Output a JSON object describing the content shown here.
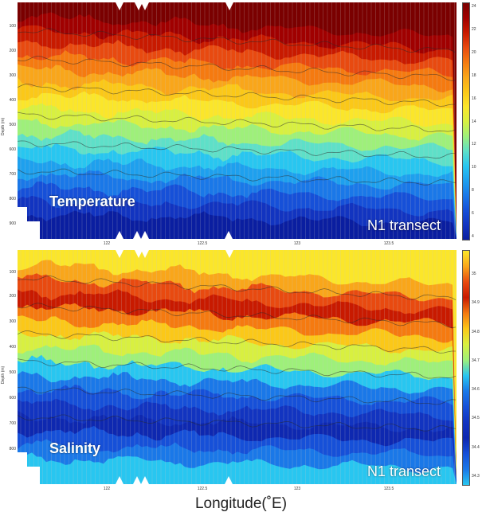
{
  "xaxis_label": "Longitude(˚E)",
  "panels": [
    {
      "title": "Temperature",
      "transect": "N1 transect",
      "ylabel": "Depth (m)",
      "yticks": [
        "100",
        "200",
        "300",
        "400",
        "500",
        "600",
        "700",
        "800",
        "900"
      ],
      "xticks": [
        "122",
        "122.5",
        "123",
        "123.5"
      ],
      "colorbar_ticks": [
        "24",
        "22",
        "20",
        "18",
        "16",
        "14",
        "12",
        "10",
        "8",
        "6",
        "4"
      ],
      "contour_labels": [
        "26",
        "25",
        "20",
        "18",
        "16",
        "14",
        "12",
        "10",
        "8",
        "6"
      ],
      "colors": [
        "#7a0000",
        "#a00000",
        "#c81a00",
        "#e84a10",
        "#f57a10",
        "#f9a61a",
        "#fbc818",
        "#fbe62a",
        "#d8f040",
        "#9ef07a",
        "#5ee0c8",
        "#28c6f0",
        "#1ea0ee",
        "#1a78e8",
        "#1650d8",
        "#1234c0",
        "#0a1ea0"
      ]
    },
    {
      "title": "Salinity",
      "transect": "N1 transect",
      "ylabel": "Depth (m)",
      "yticks": [
        "100",
        "200",
        "300",
        "400",
        "500",
        "600",
        "700",
        "800"
      ],
      "xticks": [
        "122",
        "122.5",
        "123",
        "123.5"
      ],
      "colorbar_ticks": [
        "35",
        "34.9",
        "34.8",
        "34.7",
        "34.6",
        "34.5",
        "34.4",
        "34.3"
      ],
      "contour_labels": [
        "34.8",
        "34.7",
        "34.6",
        "34.5",
        "34.4"
      ],
      "colors": [
        "#fbe62a",
        "#f9a61a",
        "#e84a10",
        "#c81a00",
        "#f57a10",
        "#fbc818",
        "#d8f040",
        "#9ef07a",
        "#28c6f0",
        "#1a78e8",
        "#1650d8",
        "#1234c0",
        "#0e28b0",
        "#1650d8",
        "#1a78e8",
        "#28c6f0"
      ]
    }
  ],
  "chart_data": [
    {
      "type": "heatmap",
      "title": "Temperature",
      "ylabel": "Depth (m)",
      "xlabel": "Longitude(˚E)",
      "x_range": [
        121.6,
        123.9
      ],
      "y_range": [
        0,
        980
      ],
      "y_reversed": true,
      "colorbar": {
        "min": 4,
        "max": 25,
        "ticks": [
          24,
          22,
          20,
          18,
          16,
          14,
          12,
          10,
          8,
          6,
          4
        ]
      },
      "isotherm_depths_west_to_east": [
        {
          "value": 25,
          "depth_west": 130,
          "depth_east": 200
        },
        {
          "value": 20,
          "depth_west": 250,
          "depth_east": 340
        },
        {
          "value": 16,
          "depth_west": 360,
          "depth_east": 470
        },
        {
          "value": 12,
          "depth_west": 460,
          "depth_east": 620
        },
        {
          "value": 8,
          "depth_west": 640,
          "depth_east": 820
        }
      ]
    },
    {
      "type": "heatmap",
      "title": "Salinity",
      "ylabel": "Depth (m)",
      "xlabel": "Longitude(˚E)",
      "x_range": [
        121.6,
        123.9
      ],
      "y_range": [
        0,
        880
      ],
      "y_reversed": true,
      "colorbar": {
        "min": 34.3,
        "max": 35.0,
        "ticks": [
          35,
          34.9,
          34.8,
          34.7,
          34.6,
          34.5,
          34.4,
          34.3
        ]
      },
      "max_salinity_layer_depth": [
        80,
        180
      ],
      "min_salinity_layer_depth": [
        450,
        700
      ]
    }
  ]
}
